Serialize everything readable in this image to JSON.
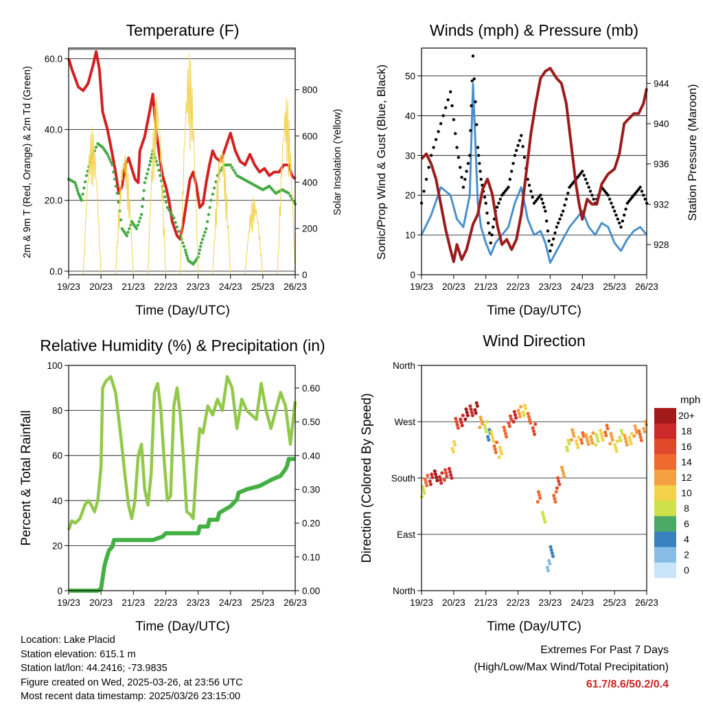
{
  "chart_data": [
    {
      "type": "line",
      "title": "Temperature (F)",
      "xlabel": "Time (Day/UTC)",
      "ylabel": "2m & 9m T (Red, Orange) & 2m Td (Green)",
      "ylabel_right": "Solar Insolation (Yellow)",
      "x_ticks": [
        "19/23",
        "20/23",
        "21/23",
        "22/23",
        "23/23",
        "24/23",
        "25/23",
        "26/23"
      ],
      "y_ticks": [
        "0.0",
        "20.0",
        "40.0",
        "60.0"
      ],
      "y_ticks_right": [
        "0",
        "200",
        "400",
        "600",
        "800"
      ],
      "ylim": [
        -1,
        63
      ],
      "ylim_right": [
        0,
        980
      ],
      "grid": true,
      "series": [
        {
          "key": "temp_2m",
          "color": "#d42020",
          "axis": "left",
          "style": "thick-line",
          "x": [
            0,
            0.1,
            0.3,
            0.45,
            0.6,
            0.75,
            0.85,
            0.95,
            1.05,
            1.2,
            1.35,
            1.45,
            1.55,
            1.65,
            1.75,
            1.85,
            1.95,
            2.05,
            2.15,
            2.2,
            2.35,
            2.5,
            2.6,
            2.7,
            2.8,
            2.9,
            3.0,
            3.1,
            3.2,
            3.35,
            3.45,
            3.55,
            3.65,
            3.75,
            3.85,
            3.95,
            4.05,
            4.15,
            4.25,
            4.35,
            4.45,
            4.55,
            4.7,
            4.85,
            5.0,
            5.15,
            5.3,
            5.45,
            5.6,
            5.75,
            5.9,
            6.05,
            6.2,
            6.35,
            6.5,
            6.65,
            6.8,
            6.9,
            7.0
          ],
          "y": [
            60,
            57,
            52,
            51,
            53,
            58,
            62,
            57,
            45,
            40,
            33,
            28,
            22,
            24,
            30,
            32,
            29,
            26,
            25,
            34,
            38,
            45,
            50,
            40,
            33,
            27,
            24,
            20,
            14,
            10,
            9,
            14,
            20,
            26,
            28,
            24,
            18,
            19,
            25,
            30,
            34,
            32,
            31,
            35,
            39,
            34,
            31,
            30,
            33,
            30,
            28,
            29,
            27,
            28,
            28,
            30,
            30,
            27,
            26
          ]
        },
        {
          "key": "dewpoint_2m",
          "color": "#44aa44",
          "axis": "left",
          "style": "dots",
          "x": [
            0,
            0.2,
            0.3,
            0.4,
            0.55,
            0.7,
            0.9,
            1.05,
            1.2,
            1.35,
            1.5,
            1.65,
            1.8,
            1.95,
            2.1,
            2.25,
            2.35,
            2.5,
            2.6,
            2.75,
            2.9,
            3.05,
            3.25,
            3.45,
            3.6,
            3.7,
            3.85,
            4.0,
            4.1,
            4.25,
            4.4,
            4.6,
            4.8,
            5.0,
            5.2,
            5.4,
            5.6,
            5.8,
            6.0,
            6.2,
            6.4,
            6.6,
            6.8,
            7.0
          ],
          "y": [
            26,
            25,
            22,
            20,
            27,
            32,
            36,
            35,
            33,
            30,
            22,
            12,
            10,
            14,
            12,
            16,
            25,
            30,
            34,
            30,
            24,
            18,
            15,
            10,
            6,
            3,
            2,
            4,
            8,
            12,
            20,
            27,
            30,
            30,
            27,
            26,
            25,
            24,
            23,
            24,
            22,
            23,
            22,
            19
          ]
        },
        {
          "key": "solar_insolation",
          "color": "#f2d24a",
          "axis": "right",
          "style": "thin-line",
          "days": [
            0,
            1,
            2,
            3,
            4,
            5,
            6
          ],
          "peaks": [
            640,
            550,
            790,
            960,
            580,
            340,
            780
          ]
        }
      ]
    },
    {
      "type": "line",
      "title": "Winds (mph) & Pressure (mb)",
      "xlabel": "Time (Day/UTC)",
      "ylabel": "Sonic/Prop Wind & Gust (Blue, Black)",
      "ylabel_right": "Station Pressure (Maroon)",
      "x_ticks": [
        "19/23",
        "20/23",
        "21/23",
        "22/23",
        "23/23",
        "24/23",
        "25/23",
        "26/23"
      ],
      "y_ticks": [
        "0",
        "10",
        "20",
        "30",
        "40",
        "50"
      ],
      "y_ticks_right": [
        "928",
        "932",
        "936",
        "940",
        "944"
      ],
      "ylim": [
        0,
        57
      ],
      "ylim_right": [
        925,
        947.5
      ],
      "grid": true,
      "series": [
        {
          "key": "wind",
          "color": "#4a90cc",
          "axis": "left",
          "style": "thick-line",
          "x": [
            0,
            0.3,
            0.6,
            0.9,
            1.1,
            1.3,
            1.5,
            1.6,
            1.75,
            1.85,
            2.0,
            2.15,
            2.3,
            2.5,
            2.7,
            2.9,
            3.1,
            3.3,
            3.5,
            3.7,
            3.85,
            4.0,
            4.2,
            4.4,
            4.6,
            4.8,
            5.0,
            5.2,
            5.4,
            5.6,
            5.8,
            6.0,
            6.2,
            6.4,
            6.6,
            6.8,
            7.0
          ],
          "y": [
            10,
            15,
            22,
            20,
            14,
            12,
            20,
            48,
            18,
            12,
            8,
            5,
            8,
            10,
            12,
            18,
            22,
            14,
            10,
            11,
            8,
            3,
            6,
            9,
            12,
            14,
            16,
            12,
            10,
            13,
            12,
            8,
            6,
            9,
            11,
            12,
            10
          ]
        },
        {
          "key": "gust",
          "color": "#000000",
          "axis": "left",
          "style": "dots",
          "x": [
            0,
            0.3,
            0.6,
            0.9,
            1.1,
            1.3,
            1.5,
            1.6,
            1.75,
            1.85,
            2.0,
            2.15,
            2.3,
            2.5,
            2.7,
            2.9,
            3.1,
            3.3,
            3.5,
            3.7,
            3.85,
            4.0,
            4.2,
            4.4,
            4.6,
            4.8,
            5.0,
            5.2,
            5.4,
            5.6,
            5.8,
            6.0,
            6.2,
            6.4,
            6.6,
            6.8,
            7.0
          ],
          "y": [
            18,
            30,
            38,
            46,
            32,
            22,
            30,
            55,
            32,
            24,
            18,
            8,
            16,
            20,
            22,
            30,
            35,
            24,
            18,
            20,
            16,
            6,
            12,
            16,
            22,
            24,
            26,
            22,
            18,
            22,
            20,
            16,
            12,
            18,
            20,
            22,
            18
          ]
        },
        {
          "key": "pressure",
          "color": "#9b1c1c",
          "axis": "right",
          "style": "thick-line",
          "x": [
            0,
            0.15,
            0.3,
            0.45,
            0.6,
            0.75,
            0.9,
            1.0,
            1.1,
            1.25,
            1.4,
            1.6,
            1.75,
            1.9,
            2.05,
            2.2,
            2.35,
            2.5,
            2.65,
            2.8,
            2.95,
            3.1,
            3.25,
            3.4,
            3.55,
            3.7,
            3.85,
            4.0,
            4.2,
            4.35,
            4.5,
            4.65,
            4.8,
            4.9,
            5.0,
            5.15,
            5.3,
            5.45,
            5.6,
            5.8,
            6.0,
            6.15,
            6.3,
            6.45,
            6.6,
            6.75,
            6.9,
            7.0
          ],
          "y": [
            936.5,
            937,
            936,
            934.5,
            932,
            929.5,
            927.5,
            926.3,
            928,
            926.5,
            927.5,
            930,
            931,
            933.5,
            934.5,
            933,
            930,
            928,
            928.5,
            927.5,
            928.5,
            931,
            935,
            939,
            942,
            944.5,
            945.2,
            945.5,
            944.5,
            944,
            942,
            938,
            934,
            932,
            930.5,
            932.5,
            932,
            932,
            934,
            935,
            935.5,
            937,
            940,
            940.5,
            941,
            941,
            942,
            943.5
          ]
        }
      ]
    },
    {
      "type": "line",
      "title": "Relative Humidity (%) & Precipitation (in)",
      "xlabel": "Time (Day/UTC)",
      "ylabel": "Percent & Total Rainfall",
      "x_ticks": [
        "19/23",
        "20/23",
        "21/23",
        "22/23",
        "23/23",
        "24/23",
        "25/23",
        "26/23"
      ],
      "y_ticks": [
        "0",
        "20",
        "40",
        "60",
        "80",
        "100"
      ],
      "y_ticks_right": [
        "0.00",
        "0.10",
        "0.20",
        "0.30",
        "0.40",
        "0.50",
        "0.60"
      ],
      "ylim": [
        0,
        100
      ],
      "ylim_right": [
        0,
        0.667
      ],
      "grid": true,
      "series": [
        {
          "key": "rh",
          "color": "#92c94a",
          "axis": "left",
          "style": "thick-line",
          "x": [
            0,
            0.1,
            0.2,
            0.35,
            0.5,
            0.6,
            0.7,
            0.8,
            0.9,
            1.0,
            1.05,
            1.15,
            1.3,
            1.45,
            1.6,
            1.75,
            1.85,
            1.95,
            2.05,
            2.15,
            2.25,
            2.35,
            2.45,
            2.55,
            2.65,
            2.75,
            2.85,
            2.95,
            3.05,
            3.15,
            3.25,
            3.35,
            3.45,
            3.55,
            3.65,
            3.75,
            3.85,
            3.95,
            4.05,
            4.15,
            4.3,
            4.45,
            4.6,
            4.75,
            4.9,
            5.05,
            5.2,
            5.35,
            5.5,
            5.65,
            5.8,
            5.95,
            6.1,
            6.25,
            6.4,
            6.55,
            6.7,
            6.85,
            7.0
          ],
          "y": [
            27,
            31,
            30,
            32,
            38,
            40,
            38,
            35,
            40,
            55,
            90,
            93,
            95,
            88,
            70,
            50,
            38,
            32,
            40,
            60,
            65,
            45,
            38,
            52,
            88,
            92,
            80,
            58,
            40,
            42,
            82,
            90,
            78,
            58,
            35,
            34,
            32,
            55,
            72,
            70,
            82,
            78,
            85,
            80,
            95,
            90,
            72,
            85,
            80,
            78,
            76,
            92,
            80,
            72,
            80,
            88,
            82,
            65,
            84
          ]
        },
        {
          "key": "precip_total",
          "color": "#44b044",
          "axis": "right",
          "style": "thick-line",
          "x": [
            0,
            0.9,
            1.0,
            1.1,
            1.15,
            1.25,
            1.35,
            1.4,
            1.5,
            2.0,
            2.6,
            2.9,
            3.0,
            3.05,
            3.5,
            4.0,
            4.05,
            4.3,
            4.35,
            4.6,
            4.65,
            5.0,
            5.2,
            5.25,
            5.5,
            5.9,
            6.1,
            6.3,
            6.55,
            6.7,
            6.75,
            6.8,
            7.0
          ],
          "y": [
            0,
            0,
            0.005,
            0.07,
            0.09,
            0.12,
            0.13,
            0.15,
            0.15,
            0.15,
            0.15,
            0.16,
            0.17,
            0.17,
            0.17,
            0.17,
            0.19,
            0.19,
            0.21,
            0.21,
            0.23,
            0.25,
            0.27,
            0.29,
            0.3,
            0.31,
            0.32,
            0.33,
            0.34,
            0.36,
            0.37,
            0.39,
            0.39
          ]
        }
      ]
    },
    {
      "type": "scatter",
      "title": "Wind Direction",
      "xlabel": "Time (Day/UTC)",
      "ylabel": "Direction (Colored By Speed)",
      "x_ticks": [
        "19/23",
        "20/23",
        "21/23",
        "22/23",
        "23/23",
        "24/23",
        "25/23",
        "26/23"
      ],
      "y_ticks": [
        "North",
        "East",
        "South",
        "West",
        "North"
      ],
      "ylim": [
        0,
        360
      ],
      "grid": true,
      "legend": {
        "title": "mph",
        "placement": "right",
        "labels": [
          "20+",
          "18",
          "16",
          "14",
          "12",
          "10",
          "8",
          "6",
          "4",
          "2",
          "0"
        ],
        "colors": [
          "#a31a1a",
          "#cc2a2a",
          "#e04a2a",
          "#f06a30",
          "#f5a040",
          "#f2d24a",
          "#cfe04a",
          "#4caa66",
          "#3a80c0",
          "#86bce6",
          "#c8e4f8"
        ]
      },
      "series": [
        {
          "key": "direction",
          "x": [
            0.05,
            0.15,
            0.3,
            0.45,
            0.6,
            0.75,
            0.9,
            1.0,
            1.1,
            1.25,
            1.4,
            1.55,
            1.7,
            1.85,
            2.0,
            2.1,
            2.2,
            2.3,
            2.45,
            2.6,
            2.75,
            2.9,
            3.05,
            3.2,
            3.35,
            3.5,
            3.65,
            3.8,
            3.95,
            4.05,
            4.15,
            4.25,
            4.4,
            4.55,
            4.7,
            4.85,
            5.0,
            5.15,
            5.3,
            5.45,
            5.6,
            5.75,
            5.9,
            6.05,
            6.2,
            6.35,
            6.5,
            6.65,
            6.8,
            6.95
          ],
          "y": [
            160,
            175,
            180,
            183,
            182,
            185,
            190,
            230,
            265,
            272,
            280,
            288,
            290,
            270,
            260,
            250,
            245,
            230,
            220,
            255,
            270,
            280,
            285,
            290,
            275,
            260,
            150,
            120,
            40,
            60,
            150,
            170,
            190,
            230,
            250,
            235,
            245,
            240,
            245,
            240,
            250,
            255,
            245,
            230,
            250,
            240,
            245,
            255,
            250,
            262
          ],
          "speed": [
            8,
            14,
            18,
            20,
            18,
            16,
            18,
            10,
            16,
            18,
            20,
            18,
            20,
            12,
            8,
            4,
            10,
            14,
            10,
            14,
            16,
            18,
            12,
            10,
            14,
            16,
            14,
            8,
            2,
            4,
            14,
            16,
            12,
            8,
            12,
            10,
            14,
            12,
            12,
            8,
            10,
            14,
            12,
            10,
            8,
            12,
            10,
            12,
            14,
            12
          ]
        }
      ]
    }
  ],
  "footer": {
    "location": "Location: Lake Placid",
    "elevation": "Station elevation: 615.1 m",
    "latlon": "Station lat/lon: 44.2416; -73.9835",
    "created": "Figure created on Wed, 2025-03-26, at 23:56 UTC",
    "recent": "Most recent data timestamp: 2025/03/26 23:15:00"
  },
  "extremes": {
    "title": "Extremes For Past 7 Days",
    "subtitle": "(High/Low/Max Wind/Total Precipitation)",
    "values": "61.7/8.6/50.2/0.4"
  }
}
